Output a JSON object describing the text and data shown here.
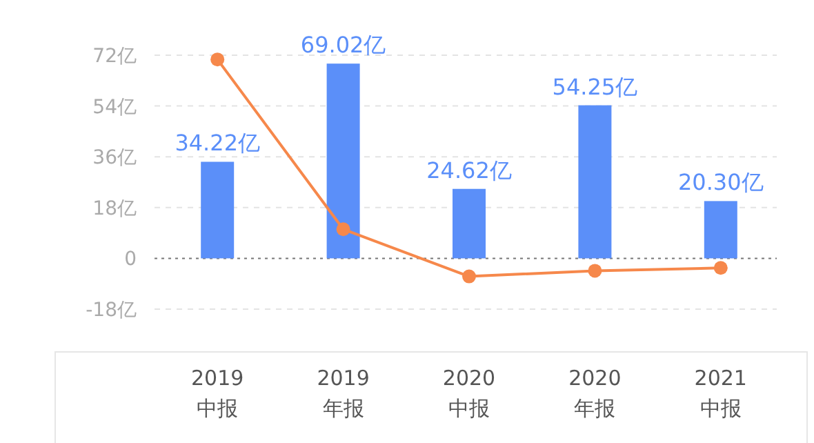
{
  "chart_data": {
    "type": "bar",
    "categories": [
      "2019 中报",
      "2019 年报",
      "2020 中报",
      "2020 年报",
      "2021 中报"
    ],
    "series": [
      {
        "color": "#5b8ff9",
        "values": [
          34.22,
          69.02,
          24.62,
          54.25,
          20.3
        ],
        "value_labels": [
          "34.22亿",
          "69.02亿",
          "24.62亿",
          "54.25亿",
          "20.30亿"
        ]
      },
      {
        "type": "line",
        "color": "#f6884b",
        "values": [
          70.5,
          10.3,
          -6.4,
          -4.4,
          -3.4
        ],
        "marker": "circle"
      }
    ],
    "ylim": [
      -18,
      72
    ],
    "yticks": [
      {
        "value": -18,
        "label": "-18亿"
      },
      {
        "value": 0,
        "label": "0"
      },
      {
        "value": 18,
        "label": "18亿"
      },
      {
        "value": 36,
        "label": "36亿"
      },
      {
        "value": 54,
        "label": "54亿"
      },
      {
        "value": 72,
        "label": "72亿"
      }
    ],
    "ref_lines": [
      {
        "axis": "y",
        "value": 0,
        "color": "#777777",
        "line_style": "dotted"
      }
    ],
    "grid": "y"
  }
}
